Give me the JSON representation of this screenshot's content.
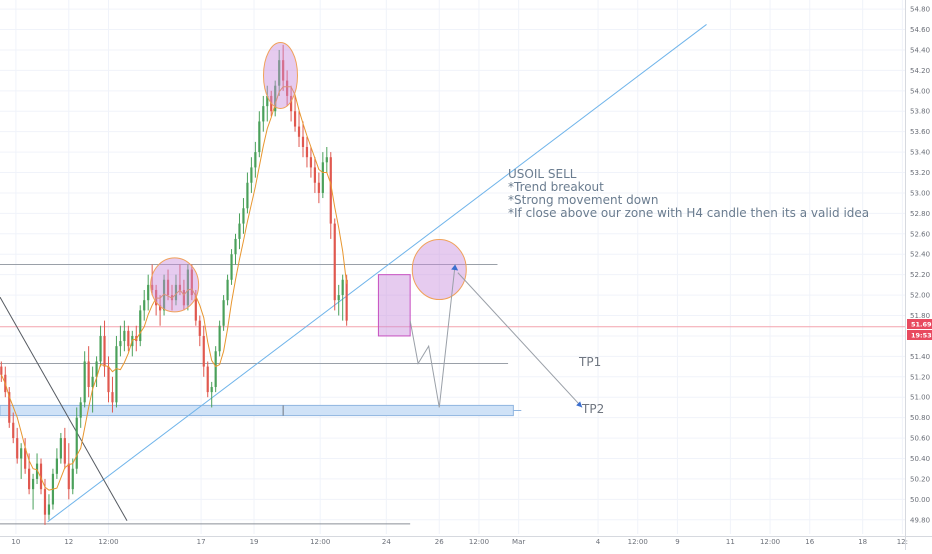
{
  "chart_data": {
    "type": "candlestick",
    "symbol_note": {
      "lines": [
        "USOIL SELL",
        "*Trend breakout",
        "*Strong movement down",
        "*If close above our zone with H4 candle then its a valid idea"
      ]
    },
    "y_axis": {
      "ticks": [
        "54.80",
        "54.60",
        "54.40",
        "54.20",
        "54.00",
        "53.80",
        "53.60",
        "53.40",
        "53.20",
        "53.00",
        "52.80",
        "52.60",
        "52.40",
        "52.20",
        "52.00",
        "51.80",
        "51.60",
        "51.40",
        "51.20",
        "51.00",
        "50.80",
        "50.60",
        "50.40",
        "50.20",
        "50.00",
        "49.80"
      ],
      "range": [
        49.7,
        54.85
      ]
    },
    "x_axis": {
      "ticks": [
        {
          "label": "10",
          "day": 10
        },
        {
          "label": "12",
          "day": 12
        },
        {
          "label": "12:00",
          "day": 13.5
        },
        {
          "label": "17",
          "day": 17
        },
        {
          "label": "19",
          "day": 19
        },
        {
          "label": "12:00",
          "day": 21.5
        },
        {
          "label": "24",
          "day": 24
        },
        {
          "label": "26",
          "day": 26
        },
        {
          "label": "12:00",
          "day": 27.5
        },
        {
          "label": "Mar",
          "day": 29
        },
        {
          "label": "4",
          "day": 32
        },
        {
          "label": "12:00",
          "day": 33.5
        },
        {
          "label": "9",
          "day": 35
        },
        {
          "label": "11",
          "day": 37
        },
        {
          "label": "12:00",
          "day": 38.5
        },
        {
          "label": "16",
          "day": 40
        },
        {
          "label": "18",
          "day": 42
        },
        {
          "label": "12:",
          "day": 43.5
        }
      ],
      "range": [
        9.4,
        43.6
      ]
    },
    "current_price": {
      "value": "51.69",
      "timer": "19:53",
      "level": 51.69
    },
    "candles_ohlc": [
      [
        9.45,
        51.3,
        51.35,
        51.15,
        51.22
      ],
      [
        9.6,
        51.22,
        51.3,
        51.0,
        51.05
      ],
      [
        9.75,
        51.05,
        51.1,
        50.7,
        50.75
      ],
      [
        9.9,
        50.75,
        50.85,
        50.55,
        50.6
      ],
      [
        10.05,
        50.6,
        50.7,
        50.35,
        50.4
      ],
      [
        10.2,
        50.4,
        50.55,
        50.2,
        50.5
      ],
      [
        10.35,
        50.5,
        50.6,
        50.25,
        50.3
      ],
      [
        10.5,
        50.3,
        50.45,
        50.05,
        50.1
      ],
      [
        10.65,
        50.1,
        50.25,
        49.9,
        50.2
      ],
      [
        10.8,
        50.2,
        50.45,
        50.15,
        50.35
      ],
      [
        10.95,
        50.35,
        50.4,
        50.05,
        50.1
      ],
      [
        11.1,
        50.1,
        50.2,
        49.75,
        49.85
      ],
      [
        11.25,
        49.85,
        50.05,
        49.8,
        49.95
      ],
      [
        11.4,
        49.95,
        50.3,
        49.9,
        50.25
      ],
      [
        11.55,
        50.25,
        50.5,
        50.2,
        50.4
      ],
      [
        11.7,
        50.4,
        50.65,
        50.35,
        50.6
      ],
      [
        11.85,
        50.6,
        50.7,
        50.3,
        50.35
      ],
      [
        12.0,
        50.35,
        50.55,
        50.0,
        50.1
      ],
      [
        12.15,
        50.1,
        50.4,
        50.05,
        50.3
      ],
      [
        12.3,
        50.3,
        50.9,
        50.25,
        50.8
      ],
      [
        12.45,
        50.8,
        51.0,
        50.7,
        50.95
      ],
      [
        12.6,
        50.95,
        51.45,
        50.9,
        51.35
      ],
      [
        12.75,
        51.35,
        51.5,
        51.0,
        51.1
      ],
      [
        12.9,
        51.1,
        51.3,
        50.85,
        51.2
      ],
      [
        13.05,
        51.2,
        51.4,
        51.1,
        51.35
      ],
      [
        13.2,
        51.35,
        51.7,
        51.3,
        51.6
      ],
      [
        13.35,
        51.6,
        51.75,
        51.2,
        51.3
      ],
      [
        13.5,
        51.3,
        51.4,
        50.95,
        51.05
      ],
      [
        13.65,
        51.05,
        51.2,
        50.85,
        50.95
      ],
      [
        13.8,
        50.95,
        51.6,
        50.9,
        51.5
      ],
      [
        13.95,
        51.5,
        51.7,
        51.4,
        51.55
      ],
      [
        14.1,
        51.55,
        51.75,
        51.45,
        51.65
      ],
      [
        14.25,
        51.65,
        51.7,
        51.45,
        51.5
      ],
      [
        14.4,
        51.5,
        51.65,
        51.4,
        51.6
      ],
      [
        14.55,
        51.6,
        51.7,
        51.45,
        51.55
      ],
      [
        14.7,
        51.55,
        51.9,
        51.5,
        51.85
      ],
      [
        14.85,
        51.85,
        52.05,
        51.75,
        51.95
      ],
      [
        15.0,
        51.95,
        52.2,
        51.85,
        52.1
      ],
      [
        15.15,
        52.1,
        52.3,
        52.0,
        52.05
      ],
      [
        15.3,
        52.05,
        52.1,
        51.8,
        51.9
      ],
      [
        15.45,
        51.9,
        52.0,
        51.7,
        51.85
      ],
      [
        15.6,
        51.85,
        52.2,
        51.8,
        52.15
      ],
      [
        15.75,
        52.15,
        52.25,
        51.95,
        52.0
      ],
      [
        15.9,
        52.0,
        52.1,
        51.85,
        51.95
      ],
      [
        16.05,
        51.95,
        52.2,
        51.9,
        52.1
      ],
      [
        16.2,
        52.1,
        52.3,
        52.0,
        52.05
      ],
      [
        16.35,
        52.05,
        52.15,
        51.85,
        51.9
      ],
      [
        16.5,
        51.9,
        52.3,
        51.85,
        52.25
      ],
      [
        16.65,
        52.25,
        52.3,
        51.95,
        52.0
      ],
      [
        16.8,
        52.0,
        52.05,
        51.7,
        51.75
      ],
      [
        16.95,
        51.75,
        51.8,
        51.5,
        51.6
      ],
      [
        17.1,
        51.6,
        51.7,
        51.2,
        51.3
      ],
      [
        17.25,
        51.3,
        51.35,
        51.0,
        51.05
      ],
      [
        17.4,
        51.05,
        51.15,
        50.9,
        51.1
      ],
      [
        17.55,
        51.1,
        51.5,
        51.05,
        51.45
      ],
      [
        17.7,
        51.45,
        51.75,
        51.4,
        51.7
      ],
      [
        17.85,
        51.7,
        52.0,
        51.65,
        51.95
      ],
      [
        18.0,
        51.95,
        52.2,
        51.9,
        52.15
      ],
      [
        18.15,
        52.15,
        52.45,
        52.1,
        52.4
      ],
      [
        18.3,
        52.4,
        52.6,
        52.3,
        52.55
      ],
      [
        18.45,
        52.55,
        52.8,
        52.45,
        52.7
      ],
      [
        18.6,
        52.7,
        52.95,
        52.6,
        52.85
      ],
      [
        18.75,
        52.85,
        53.2,
        52.8,
        53.1
      ],
      [
        18.9,
        53.1,
        53.35,
        53.0,
        53.25
      ],
      [
        19.05,
        53.25,
        53.5,
        53.15,
        53.4
      ],
      [
        19.2,
        53.4,
        53.8,
        53.35,
        53.7
      ],
      [
        19.35,
        53.7,
        53.95,
        53.6,
        53.85
      ],
      [
        19.5,
        53.85,
        54.05,
        53.7,
        53.95
      ],
      [
        19.65,
        53.95,
        54.0,
        53.75,
        53.8
      ],
      [
        19.8,
        53.8,
        54.1,
        53.75,
        54.05
      ],
      [
        19.95,
        54.05,
        54.4,
        53.95,
        54.3
      ],
      [
        20.1,
        54.3,
        54.45,
        54.0,
        54.1
      ],
      [
        20.25,
        54.1,
        54.2,
        53.85,
        53.95
      ],
      [
        20.4,
        53.95,
        54.05,
        53.7,
        53.8
      ],
      [
        20.55,
        53.8,
        53.95,
        53.6,
        53.65
      ],
      [
        20.7,
        53.65,
        53.8,
        53.45,
        53.55
      ],
      [
        20.85,
        53.55,
        53.7,
        53.35,
        53.45
      ],
      [
        21.0,
        53.45,
        53.55,
        53.25,
        53.35
      ],
      [
        21.15,
        53.35,
        53.45,
        53.15,
        53.25
      ],
      [
        21.3,
        53.25,
        53.35,
        53.0,
        53.1
      ],
      [
        21.45,
        53.1,
        53.2,
        52.9,
        53.0
      ],
      [
        21.6,
        53.0,
        53.4,
        52.95,
        53.3
      ],
      [
        21.75,
        53.3,
        53.45,
        53.2,
        53.35
      ],
      [
        21.9,
        53.35,
        53.4,
        52.55,
        52.7
      ],
      [
        22.05,
        52.7,
        52.75,
        51.85,
        51.95
      ],
      [
        22.2,
        51.95,
        52.1,
        51.8,
        52.0
      ],
      [
        22.35,
        52.0,
        52.2,
        51.75,
        52.15
      ],
      [
        22.5,
        52.15,
        52.2,
        51.7,
        51.75
      ]
    ],
    "levels": {
      "tp1": 51.33,
      "tp2_zone": [
        50.82,
        50.92
      ],
      "resistance": 52.3,
      "floor": 49.76
    },
    "labels": {
      "tp1": "TP1",
      "tp2": "TP2"
    }
  }
}
